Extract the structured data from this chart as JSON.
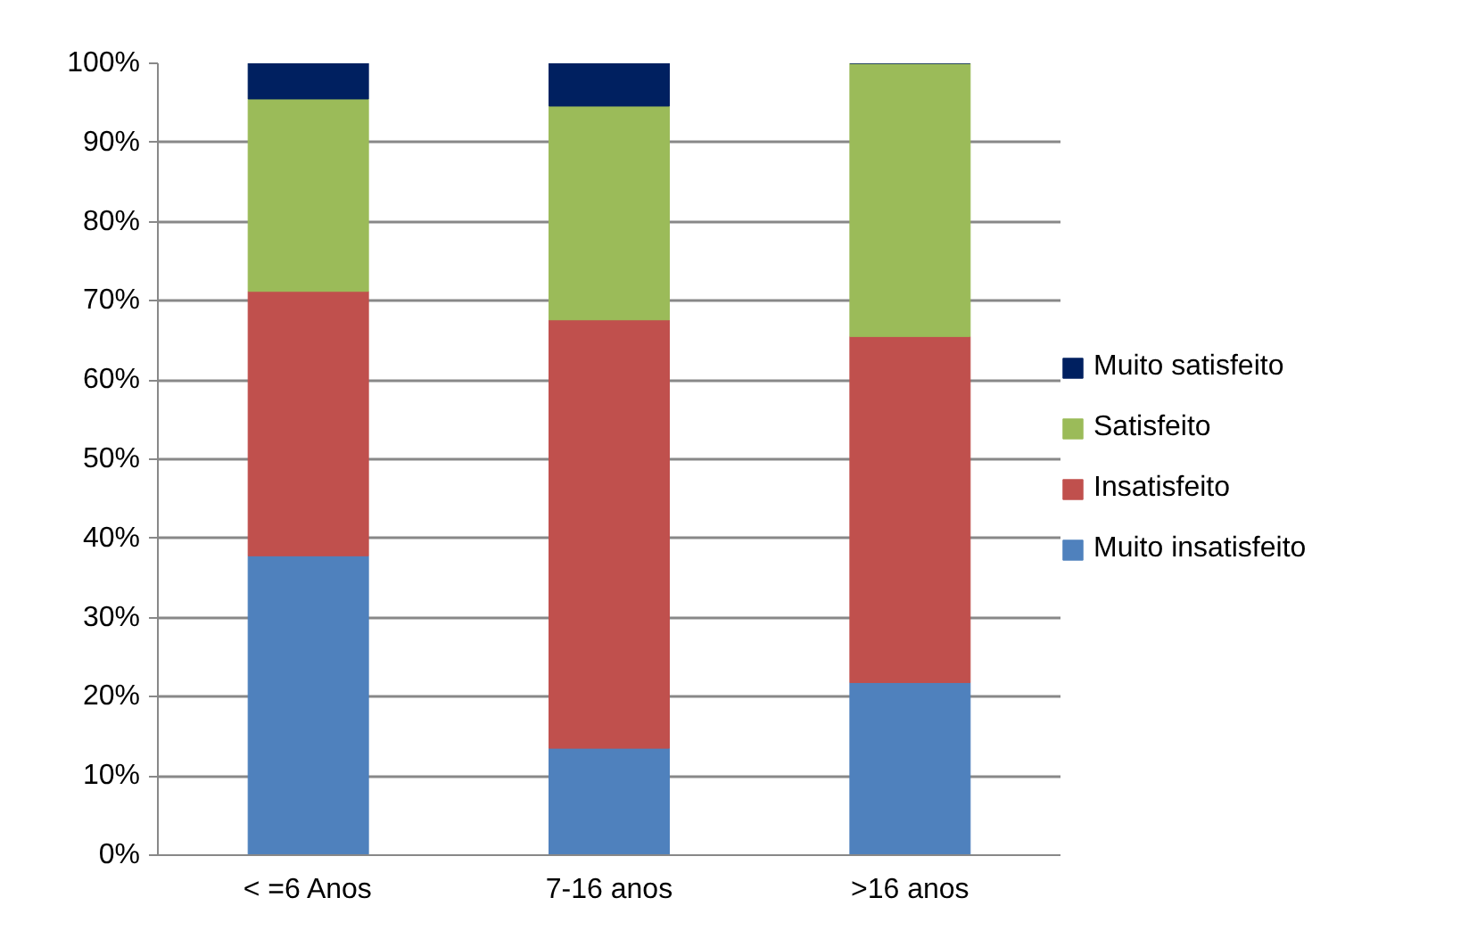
{
  "chart_data": {
    "type": "bar",
    "stacked": true,
    "categories": [
      "< =6 Anos",
      "7-16 anos",
      ">16 anos"
    ],
    "series": [
      {
        "name": "Muito insatisfeito",
        "color": "#4f81bd",
        "values": [
          37.8,
          13.5,
          21.8
        ]
      },
      {
        "name": "Insatisfeito",
        "color": "#c0504d",
        "values": [
          33.4,
          54.1,
          43.7
        ]
      },
      {
        "name": "Satisfeito",
        "color": "#9bbb59",
        "values": [
          24.3,
          27.0,
          34.5
        ]
      },
      {
        "name": "Muito satisfeito",
        "color": "#002060",
        "values": [
          4.5,
          5.4,
          0
        ]
      }
    ],
    "ylim": [
      0,
      100
    ],
    "yticks": [
      {
        "value": 0,
        "label": "0%"
      },
      {
        "value": 10,
        "label": "10%"
      },
      {
        "value": 20,
        "label": "20%"
      },
      {
        "value": 30,
        "label": "30%"
      },
      {
        "value": 40,
        "label": "40%"
      },
      {
        "value": 50,
        "label": "50%"
      },
      {
        "value": 60,
        "label": "60%"
      },
      {
        "value": 70,
        "label": "70%"
      },
      {
        "value": 80,
        "label": "80%"
      },
      {
        "value": 90,
        "label": "90%"
      },
      {
        "value": 100,
        "label": "100%"
      }
    ],
    "grid": "y",
    "legend": "right"
  }
}
